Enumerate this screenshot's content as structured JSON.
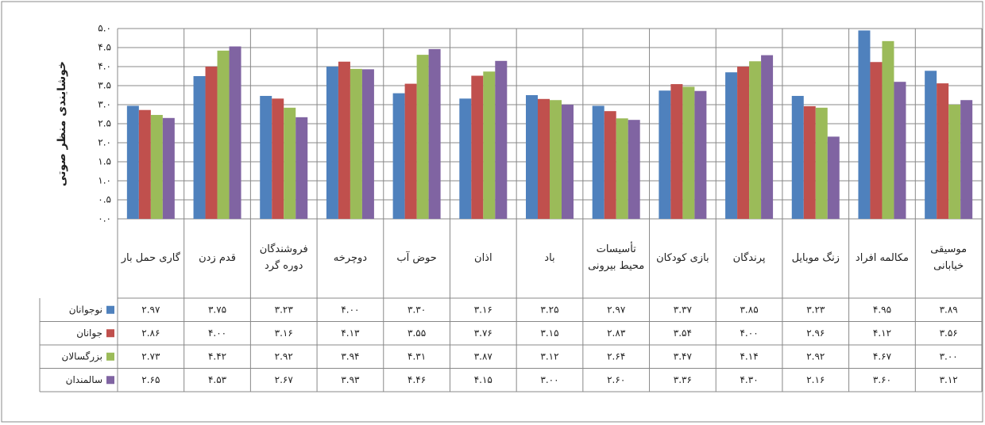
{
  "chart_data": {
    "type": "bar",
    "y_label": "خوشایندی منظر صوتی",
    "categories": [
      "گاری حمل بار",
      "قدم زدن",
      "فروشندگان دوره گرد",
      "دوچرخه",
      "حوض آب",
      "اذان",
      "باد",
      "تأسیسات محیط بیرونی",
      "بازی کودکان",
      "پرندگان",
      "زنگ موبایل",
      "مکالمه افراد",
      "موسیقی خیابانی"
    ],
    "series": [
      {
        "name": "نوجوانان",
        "color": "#4f81bd",
        "values": [
          2.97,
          3.75,
          3.23,
          4.0,
          3.3,
          3.16,
          3.25,
          2.97,
          3.37,
          3.85,
          3.23,
          4.95,
          3.89
        ],
        "value_labels": [
          "۲.۹۷",
          "۳.۷۵",
          "۳.۲۳",
          "۴.۰۰",
          "۳.۳۰",
          "۳.۱۶",
          "۳.۲۵",
          "۲.۹۷",
          "۳.۳۷",
          "۳.۸۵",
          "۳.۲۳",
          "۴.۹۵",
          "۳.۸۹"
        ]
      },
      {
        "name": "جوانان",
        "color": "#c0504d",
        "values": [
          2.86,
          4.0,
          3.16,
          4.13,
          3.55,
          3.76,
          3.15,
          2.83,
          3.54,
          4.0,
          2.96,
          4.12,
          3.56
        ],
        "value_labels": [
          "۲.۸۶",
          "۴.۰۰",
          "۳.۱۶",
          "۴.۱۳",
          "۳.۵۵",
          "۳.۷۶",
          "۳.۱۵",
          "۲.۸۳",
          "۳.۵۴",
          "۴.۰۰",
          "۲.۹۶",
          "۴.۱۲",
          "۳.۵۶"
        ]
      },
      {
        "name": "بزرگسالان",
        "color": "#9bbb59",
        "values": [
          2.73,
          4.42,
          2.92,
          3.94,
          4.31,
          3.87,
          3.12,
          2.64,
          3.47,
          4.14,
          2.92,
          4.67,
          3.0
        ],
        "value_labels": [
          "۲.۷۳",
          "۴.۴۲",
          "۲.۹۲",
          "۳.۹۴",
          "۴.۳۱",
          "۳.۸۷",
          "۳.۱۲",
          "۲.۶۴",
          "۳.۴۷",
          "۴.۱۴",
          "۲.۹۲",
          "۴.۶۷",
          "۳.۰۰"
        ]
      },
      {
        "name": "سالمندان",
        "color": "#8064a2",
        "values": [
          2.65,
          4.53,
          2.67,
          3.93,
          4.46,
          4.15,
          3.0,
          2.6,
          3.36,
          4.3,
          2.16,
          3.6,
          3.12
        ],
        "value_labels": [
          "۲.۶۵",
          "۴.۵۳",
          "۲.۶۷",
          "۳.۹۳",
          "۴.۴۶",
          "۴.۱۵",
          "۳.۰۰",
          "۲.۶۰",
          "۳.۳۶",
          "۴.۳۰",
          "۲.۱۶",
          "۳.۶۰",
          "۳.۱۲"
        ]
      }
    ],
    "ylim": [
      0,
      5
    ],
    "yticks": [
      {
        "value": 0,
        "label": "۰.۰"
      },
      {
        "value": 0.5,
        "label": "۰.۵"
      },
      {
        "value": 1,
        "label": "۱.۰"
      },
      {
        "value": 1.5,
        "label": "۱.۵"
      },
      {
        "value": 2,
        "label": "۲.۰"
      },
      {
        "value": 2.5,
        "label": "۲.۵"
      },
      {
        "value": 3,
        "label": "۳.۰"
      },
      {
        "value": 3.5,
        "label": "۳.۵"
      },
      {
        "value": 4,
        "label": "۴.۰"
      },
      {
        "value": 4.5,
        "label": "۴.۵"
      },
      {
        "value": 5,
        "label": "۵.۰"
      }
    ],
    "grid": true
  }
}
